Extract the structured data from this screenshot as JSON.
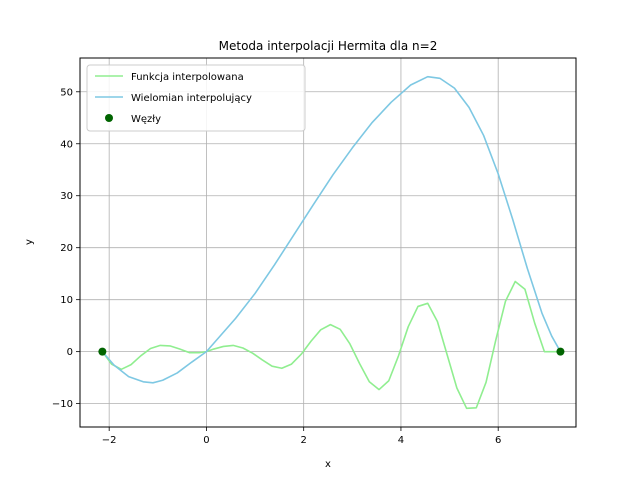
{
  "chart_data": {
    "type": "line",
    "title": "Metoda interpolacji Hermita dla n=2",
    "xlabel": "x",
    "ylabel": "y",
    "xlim": [
      -2.6,
      7.6
    ],
    "ylim": [
      -14.5,
      56.5
    ],
    "xticks": [
      -2,
      0,
      2,
      4,
      6
    ],
    "yticks": [
      -10,
      0,
      10,
      20,
      30,
      40,
      50
    ],
    "grid": true,
    "legend_position": "top-left",
    "series": [
      {
        "name": "Funkcja interpolowana",
        "color": "#90ee90",
        "x": [
          -2.14,
          -1.95,
          -1.75,
          -1.55,
          -1.35,
          -1.15,
          -0.95,
          -0.75,
          -0.55,
          -0.35,
          -0.15,
          0.0,
          0.15,
          0.35,
          0.55,
          0.75,
          0.95,
          1.15,
          1.35,
          1.55,
          1.75,
          1.95,
          2.15,
          2.35,
          2.55,
          2.75,
          2.95,
          3.15,
          3.35,
          3.55,
          3.75,
          3.95,
          4.15,
          4.35,
          4.55,
          4.75,
          4.95,
          5.15,
          5.35,
          5.55,
          5.75,
          5.95,
          6.15,
          6.35,
          6.55,
          6.75,
          6.95,
          7.15,
          7.28
        ],
        "y": [
          0.0,
          -2.4,
          -3.4,
          -2.5,
          -0.8,
          0.6,
          1.2,
          1.1,
          0.5,
          -0.2,
          -0.2,
          0.0,
          0.5,
          1.0,
          1.2,
          0.7,
          -0.3,
          -1.6,
          -2.8,
          -3.2,
          -2.4,
          -0.5,
          2.0,
          4.2,
          5.2,
          4.3,
          1.5,
          -2.3,
          -5.8,
          -7.3,
          -5.6,
          -0.8,
          4.8,
          8.7,
          9.3,
          5.8,
          -0.6,
          -7.0,
          -10.9,
          -10.8,
          -5.9,
          2.2,
          9.7,
          13.5,
          12.0,
          5.5,
          0.0,
          0.0,
          0.0
        ]
      },
      {
        "name": "Wielomian interpolujący",
        "color": "#7ec8e3",
        "x": [
          -2.14,
          -1.9,
          -1.6,
          -1.3,
          -1.1,
          -0.9,
          -0.6,
          -0.3,
          0.0,
          0.3,
          0.6,
          1.0,
          1.4,
          1.8,
          2.2,
          2.6,
          3.0,
          3.4,
          3.8,
          4.2,
          4.55,
          4.8,
          5.1,
          5.4,
          5.7,
          6.0,
          6.3,
          6.6,
          6.9,
          7.1,
          7.28
        ],
        "y": [
          0.0,
          -2.6,
          -4.8,
          -5.8,
          -6.0,
          -5.5,
          -4.1,
          -2.0,
          0.0,
          3.2,
          6.4,
          11.2,
          16.7,
          22.5,
          28.3,
          34.0,
          39.2,
          44.0,
          48.0,
          51.3,
          52.9,
          52.6,
          50.7,
          47.0,
          41.6,
          34.2,
          25.4,
          16.0,
          7.4,
          3.0,
          0.0
        ]
      },
      {
        "name": "Węzły",
        "color": "#006400",
        "type": "scatter",
        "x": [
          -2.14,
          7.28
        ],
        "y": [
          0.0,
          0.0
        ]
      }
    ]
  }
}
